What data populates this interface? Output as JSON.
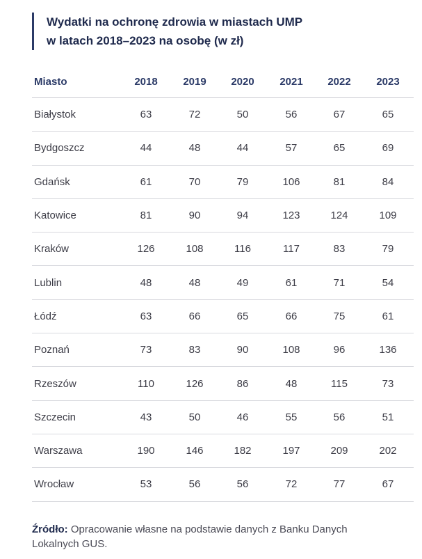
{
  "title": {
    "line1": "Wydatki na ochronę zdrowia w miastach UMP",
    "line2": "w latach 2018–2023 na osobę (w zł)"
  },
  "columns": [
    "Miasto",
    "2018",
    "2019",
    "2020",
    "2021",
    "2022",
    "2023"
  ],
  "rows": [
    {
      "city": "Białystok",
      "values": [
        "63",
        "72",
        "50",
        "56",
        "67",
        "65"
      ]
    },
    {
      "city": "Bydgoszcz",
      "values": [
        "44",
        "48",
        "44",
        "57",
        "65",
        "69"
      ]
    },
    {
      "city": "Gdańsk",
      "values": [
        "61",
        "70",
        "79",
        "106",
        "81",
        "84"
      ]
    },
    {
      "city": "Katowice",
      "values": [
        "81",
        "90",
        "94",
        "123",
        "124",
        "109"
      ]
    },
    {
      "city": "Kraków",
      "values": [
        "126",
        "108",
        "116",
        "117",
        "83",
        "79"
      ]
    },
    {
      "city": "Lublin",
      "values": [
        "48",
        "48",
        "49",
        "61",
        "71",
        "54"
      ]
    },
    {
      "city": "Łódź",
      "values": [
        "63",
        "66",
        "65",
        "66",
        "75",
        "61"
      ]
    },
    {
      "city": "Poznań",
      "values": [
        "73",
        "83",
        "90",
        "108",
        "96",
        "136"
      ]
    },
    {
      "city": "Rzeszów",
      "values": [
        "110",
        "126",
        "86",
        "48",
        "115",
        "73"
      ]
    },
    {
      "city": "Szczecin",
      "values": [
        "43",
        "50",
        "46",
        "55",
        "56",
        "51"
      ]
    },
    {
      "city": "Warszawa",
      "values": [
        "190",
        "146",
        "182",
        "197",
        "209",
        "202"
      ]
    },
    {
      "city": "Wrocław",
      "values": [
        "53",
        "56",
        "56",
        "72",
        "77",
        "67"
      ]
    }
  ],
  "source": {
    "label": "Źródło:",
    "text": " Opracowanie własne na podstawie danych z Banku Danych Lokalnych GUS."
  },
  "colors": {
    "accent": "#2b3a67",
    "row_border": "#d8d9de"
  }
}
